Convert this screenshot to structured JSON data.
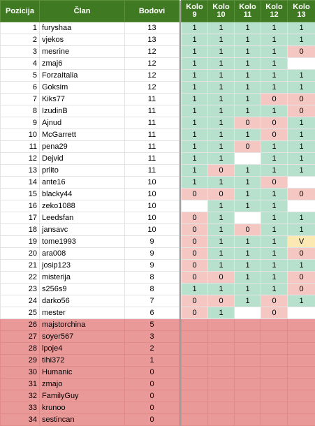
{
  "headers": {
    "position": "Pozicija",
    "member": "Član",
    "points": "Bodovi",
    "rounds": [
      {
        "l1": "Kolo",
        "l2": "9"
      },
      {
        "l1": "Kolo",
        "l2": "10"
      },
      {
        "l1": "Kolo",
        "l2": "11"
      },
      {
        "l1": "Kolo",
        "l2": "12"
      },
      {
        "l1": "Kolo",
        "l2": "13"
      }
    ]
  },
  "colors": {
    "header": "#3f7a23",
    "hit": "#b7e1cd",
    "miss": "#f4c7c3",
    "pending": "#fce8b2",
    "relegation": "#ea9999"
  },
  "rows": [
    {
      "pos": "1",
      "name": "furyshaa",
      "pts": "13",
      "r": [
        "1",
        "1",
        "1",
        "1",
        "1"
      ],
      "c": [
        "g",
        "g",
        "g",
        "g",
        "g"
      ]
    },
    {
      "pos": "2",
      "name": "vjekos",
      "pts": "13",
      "r": [
        "1",
        "1",
        "1",
        "1",
        "1"
      ],
      "c": [
        "g",
        "g",
        "g",
        "g",
        "g"
      ]
    },
    {
      "pos": "3",
      "name": "mesrine",
      "pts": "12",
      "r": [
        "1",
        "1",
        "1",
        "1",
        "0"
      ],
      "c": [
        "g",
        "g",
        "g",
        "g",
        "r"
      ]
    },
    {
      "pos": "4",
      "name": "zmaj6",
      "pts": "12",
      "r": [
        "1",
        "1",
        "1",
        "1",
        ""
      ],
      "c": [
        "g",
        "g",
        "g",
        "g",
        "w"
      ]
    },
    {
      "pos": "5",
      "name": "ForzaItalia",
      "pts": "12",
      "r": [
        "1",
        "1",
        "1",
        "1",
        "1"
      ],
      "c": [
        "g",
        "g",
        "g",
        "g",
        "g"
      ]
    },
    {
      "pos": "6",
      "name": "Goksim",
      "pts": "12",
      "r": [
        "1",
        "1",
        "1",
        "1",
        "1"
      ],
      "c": [
        "g",
        "g",
        "g",
        "g",
        "g"
      ]
    },
    {
      "pos": "7",
      "name": "Kiks77",
      "pts": "11",
      "r": [
        "1",
        "1",
        "1",
        "0",
        "0"
      ],
      "c": [
        "g",
        "g",
        "g",
        "r",
        "r"
      ]
    },
    {
      "pos": "8",
      "name": "IzudinB",
      "pts": "11",
      "r": [
        "1",
        "1",
        "1",
        "1",
        "0"
      ],
      "c": [
        "g",
        "g",
        "g",
        "g",
        "r"
      ]
    },
    {
      "pos": "9",
      "name": "Ajnud",
      "pts": "11",
      "r": [
        "1",
        "1",
        "0",
        "0",
        "1"
      ],
      "c": [
        "g",
        "g",
        "r",
        "r",
        "g"
      ]
    },
    {
      "pos": "10",
      "name": "McGarrett",
      "pts": "11",
      "r": [
        "1",
        "1",
        "1",
        "0",
        "1"
      ],
      "c": [
        "g",
        "g",
        "g",
        "r",
        "g"
      ]
    },
    {
      "pos": "11",
      "name": "pena29",
      "pts": "11",
      "r": [
        "1",
        "1",
        "0",
        "1",
        "1"
      ],
      "c": [
        "g",
        "g",
        "r",
        "g",
        "g"
      ]
    },
    {
      "pos": "12",
      "name": "Dejvid",
      "pts": "11",
      "r": [
        "1",
        "1",
        "",
        "1",
        "1"
      ],
      "c": [
        "g",
        "g",
        "w",
        "g",
        "g"
      ]
    },
    {
      "pos": "13",
      "name": "prlito",
      "pts": "11",
      "r": [
        "1",
        "0",
        "1",
        "1",
        "1"
      ],
      "c": [
        "g",
        "r",
        "g",
        "g",
        "g"
      ]
    },
    {
      "pos": "14",
      "name": "ante16",
      "pts": "10",
      "r": [
        "1",
        "1",
        "1",
        "0",
        ""
      ],
      "c": [
        "g",
        "g",
        "g",
        "r",
        "w"
      ]
    },
    {
      "pos": "15",
      "name": "blacky44",
      "pts": "10",
      "r": [
        "0",
        "0",
        "1",
        "1",
        "0"
      ],
      "c": [
        "r",
        "r",
        "g",
        "g",
        "r"
      ]
    },
    {
      "pos": "16",
      "name": "zeko1088",
      "pts": "10",
      "r": [
        "",
        "1",
        "1",
        "1",
        ""
      ],
      "c": [
        "w",
        "g",
        "g",
        "g",
        "w"
      ]
    },
    {
      "pos": "17",
      "name": "Leedsfan",
      "pts": "10",
      "r": [
        "0",
        "1",
        "",
        "1",
        "1"
      ],
      "c": [
        "r",
        "g",
        "w",
        "g",
        "g"
      ]
    },
    {
      "pos": "18",
      "name": "jansavc",
      "pts": "10",
      "r": [
        "0",
        "1",
        "0",
        "1",
        "1"
      ],
      "c": [
        "r",
        "g",
        "r",
        "g",
        "g"
      ]
    },
    {
      "pos": "19",
      "name": "tome1993",
      "pts": "9",
      "r": [
        "0",
        "1",
        "1",
        "1",
        "V"
      ],
      "c": [
        "r",
        "g",
        "g",
        "g",
        "y"
      ]
    },
    {
      "pos": "20",
      "name": "ara008",
      "pts": "9",
      "r": [
        "0",
        "1",
        "1",
        "1",
        "0"
      ],
      "c": [
        "r",
        "g",
        "g",
        "g",
        "r"
      ]
    },
    {
      "pos": "21",
      "name": "josip123",
      "pts": "9",
      "r": [
        "0",
        "1",
        "1",
        "1",
        "1"
      ],
      "c": [
        "r",
        "g",
        "g",
        "g",
        "g"
      ]
    },
    {
      "pos": "22",
      "name": "misterija",
      "pts": "8",
      "r": [
        "0",
        "0",
        "1",
        "1",
        "0"
      ],
      "c": [
        "r",
        "r",
        "g",
        "g",
        "r"
      ]
    },
    {
      "pos": "23",
      "name": "s256s9",
      "pts": "8",
      "r": [
        "1",
        "1",
        "1",
        "1",
        "0"
      ],
      "c": [
        "g",
        "g",
        "g",
        "g",
        "r"
      ]
    },
    {
      "pos": "24",
      "name": "darko56",
      "pts": "7",
      "r": [
        "0",
        "0",
        "1",
        "0",
        "1"
      ],
      "c": [
        "r",
        "r",
        "g",
        "r",
        "g"
      ]
    },
    {
      "pos": "25",
      "name": "mester",
      "pts": "6",
      "r": [
        "0",
        "1",
        "",
        "0",
        ""
      ],
      "c": [
        "r",
        "g",
        "w",
        "r",
        "w"
      ]
    },
    {
      "pos": "26",
      "name": "majstorchina",
      "pts": "5",
      "r": [
        "",
        "",
        "",
        "",
        ""
      ],
      "rel": true
    },
    {
      "pos": "27",
      "name": "soyer567",
      "pts": "3",
      "r": [
        "",
        "",
        "",
        "",
        ""
      ],
      "rel": true
    },
    {
      "pos": "28",
      "name": "lpoje4",
      "pts": "2",
      "r": [
        "",
        "",
        "",
        "",
        ""
      ],
      "rel": true
    },
    {
      "pos": "29",
      "name": "tihi372",
      "pts": "1",
      "r": [
        "",
        "",
        "",
        "",
        ""
      ],
      "rel": true
    },
    {
      "pos": "30",
      "name": "Humanic",
      "pts": "0",
      "r": [
        "",
        "",
        "",
        "",
        ""
      ],
      "rel": true
    },
    {
      "pos": "31",
      "name": "zmajo",
      "pts": "0",
      "r": [
        "",
        "",
        "",
        "",
        ""
      ],
      "rel": true
    },
    {
      "pos": "32",
      "name": "FamilyGuy",
      "pts": "0",
      "r": [
        "",
        "",
        "",
        "",
        ""
      ],
      "rel": true
    },
    {
      "pos": "33",
      "name": "krunoo",
      "pts": "0",
      "r": [
        "",
        "",
        "",
        "",
        ""
      ],
      "rel": true
    },
    {
      "pos": "34",
      "name": "sestincan",
      "pts": "0",
      "r": [
        "",
        "",
        "",
        "",
        ""
      ],
      "rel": true
    }
  ]
}
